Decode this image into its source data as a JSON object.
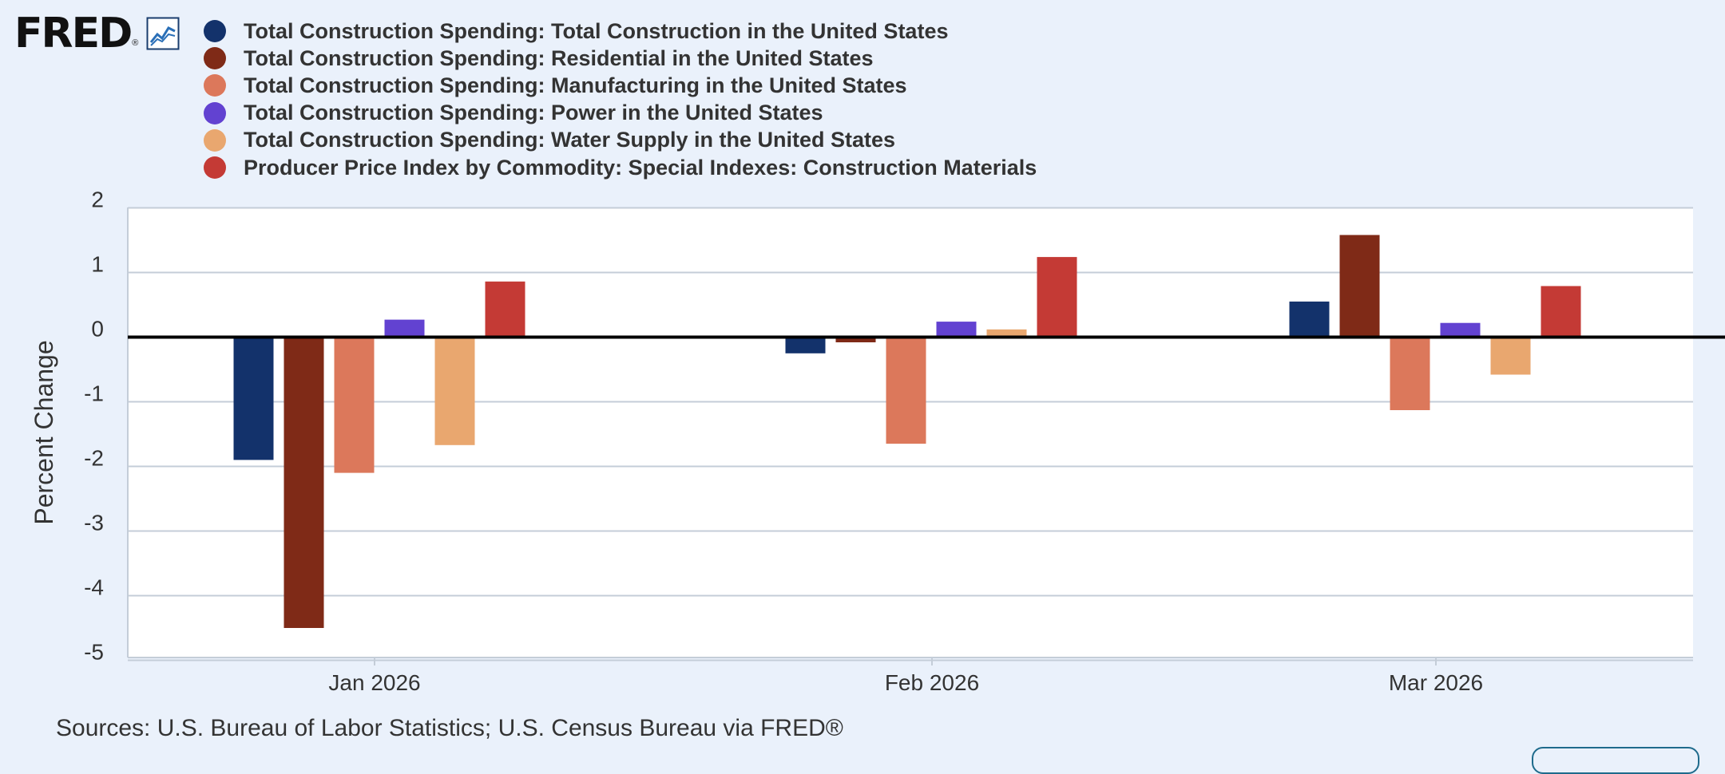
{
  "logo": {
    "text": "FRED",
    "reg": "®",
    "icon": "trend-line-chart-icon"
  },
  "chart_data": {
    "type": "bar",
    "categories": [
      "Jan 2026",
      "Feb 2026",
      "Mar 2026"
    ],
    "series": [
      {
        "name": "Total Construction Spending: Total Construction in the United States",
        "color": "#13326b",
        "values": [
          -1.9,
          -0.25,
          0.55
        ]
      },
      {
        "name": "Total Construction Spending: Residential in the United States",
        "color": "#7f2a17",
        "values": [
          -4.5,
          -0.08,
          1.58
        ]
      },
      {
        "name": "Total Construction Spending: Manufacturing in the United States",
        "color": "#dc785b",
        "values": [
          -2.1,
          -1.65,
          -1.13
        ]
      },
      {
        "name": "Total Construction Spending: Power in the United States",
        "color": "#6242d1",
        "values": [
          0.27,
          0.24,
          0.22
        ]
      },
      {
        "name": "Total Construction Spending: Water Supply in the United States",
        "color": "#e9a76f",
        "values": [
          -1.67,
          0.12,
          -0.58
        ]
      },
      {
        "name": "Producer Price Index by Commodity: Special Indexes: Construction Materials",
        "color": "#c43a35",
        "values": [
          0.86,
          1.24,
          0.79
        ]
      }
    ],
    "ylabel": "Percent Change",
    "ylim": [
      -5,
      2
    ],
    "yticks": [
      "2",
      "1",
      "0",
      "-1",
      "-2",
      "-3",
      "-4",
      "-5"
    ],
    "grid": true,
    "legend_position": "top-left"
  },
  "sources": "Sources: U.S. Bureau of Labor Statistics; U.S. Census Bureau via FRED®"
}
